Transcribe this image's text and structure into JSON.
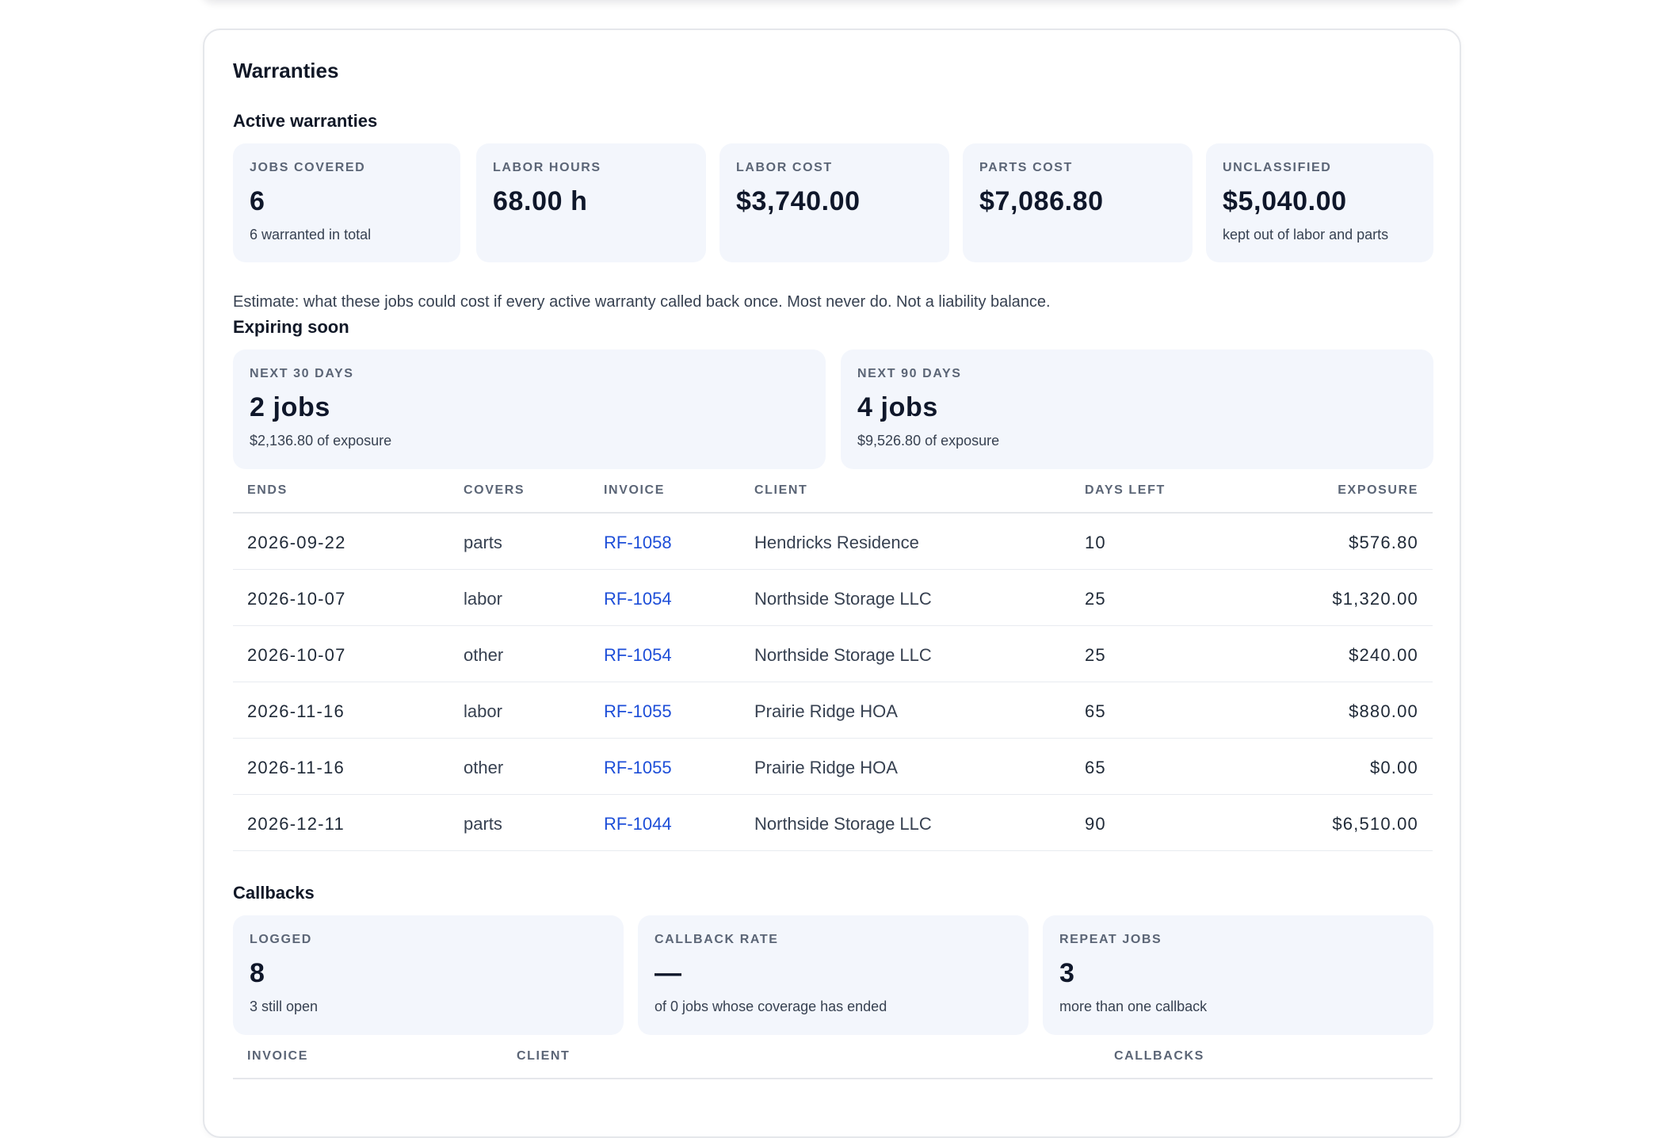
{
  "panel": {
    "title": "Warranties"
  },
  "active": {
    "title": "Active warranties",
    "cards": [
      {
        "label": "JOBS COVERED",
        "value": "6",
        "sub": "6 warranted in total"
      },
      {
        "label": "LABOR HOURS",
        "value": "68.00 h",
        "sub": ""
      },
      {
        "label": "LABOR COST",
        "value": "$3,740.00",
        "sub": ""
      },
      {
        "label": "PARTS COST",
        "value": "$7,086.80",
        "sub": ""
      },
      {
        "label": "UNCLASSIFIED",
        "value": "$5,040.00",
        "sub": "kept out of labor and parts"
      }
    ],
    "note": "Estimate: what these jobs could cost if every active warranty called back once. Most never do. Not a liability balance."
  },
  "expiring": {
    "title": "Expiring soon",
    "cards": [
      {
        "label": "NEXT 30 DAYS",
        "value": "2 jobs",
        "sub": "$2,136.80 of exposure"
      },
      {
        "label": "NEXT 90 DAYS",
        "value": "4 jobs",
        "sub": "$9,526.80 of exposure"
      }
    ],
    "columns": [
      "ENDS",
      "COVERS",
      "INVOICE",
      "CLIENT",
      "DAYS LEFT",
      "EXPOSURE"
    ],
    "rows": [
      {
        "ends": "2026-09-22",
        "covers": "parts",
        "invoice": "RF-1058",
        "client": "Hendricks Residence",
        "days_left": "10",
        "exposure": "$576.80"
      },
      {
        "ends": "2026-10-07",
        "covers": "labor",
        "invoice": "RF-1054",
        "client": "Northside Storage LLC",
        "days_left": "25",
        "exposure": "$1,320.00"
      },
      {
        "ends": "2026-10-07",
        "covers": "other",
        "invoice": "RF-1054",
        "client": "Northside Storage LLC",
        "days_left": "25",
        "exposure": "$240.00"
      },
      {
        "ends": "2026-11-16",
        "covers": "labor",
        "invoice": "RF-1055",
        "client": "Prairie Ridge HOA",
        "days_left": "65",
        "exposure": "$880.00"
      },
      {
        "ends": "2026-11-16",
        "covers": "other",
        "invoice": "RF-1055",
        "client": "Prairie Ridge HOA",
        "days_left": "65",
        "exposure": "$0.00"
      },
      {
        "ends": "2026-12-11",
        "covers": "parts",
        "invoice": "RF-1044",
        "client": "Northside Storage LLC",
        "days_left": "90",
        "exposure": "$6,510.00"
      }
    ]
  },
  "callbacks": {
    "title": "Callbacks",
    "cards": [
      {
        "label": "LOGGED",
        "value": "8",
        "sub": "3 still open"
      },
      {
        "label": "CALLBACK RATE",
        "value": "—",
        "sub": "of 0 jobs whose coverage has ended"
      },
      {
        "label": "REPEAT JOBS",
        "value": "3",
        "sub": "more than one callback"
      }
    ],
    "columns": [
      "INVOICE",
      "CLIENT",
      "CALLBACKS"
    ]
  },
  "colors": {
    "card_bg": "#f3f6fc",
    "link": "#1d4ed8",
    "label": "#5b6576"
  }
}
